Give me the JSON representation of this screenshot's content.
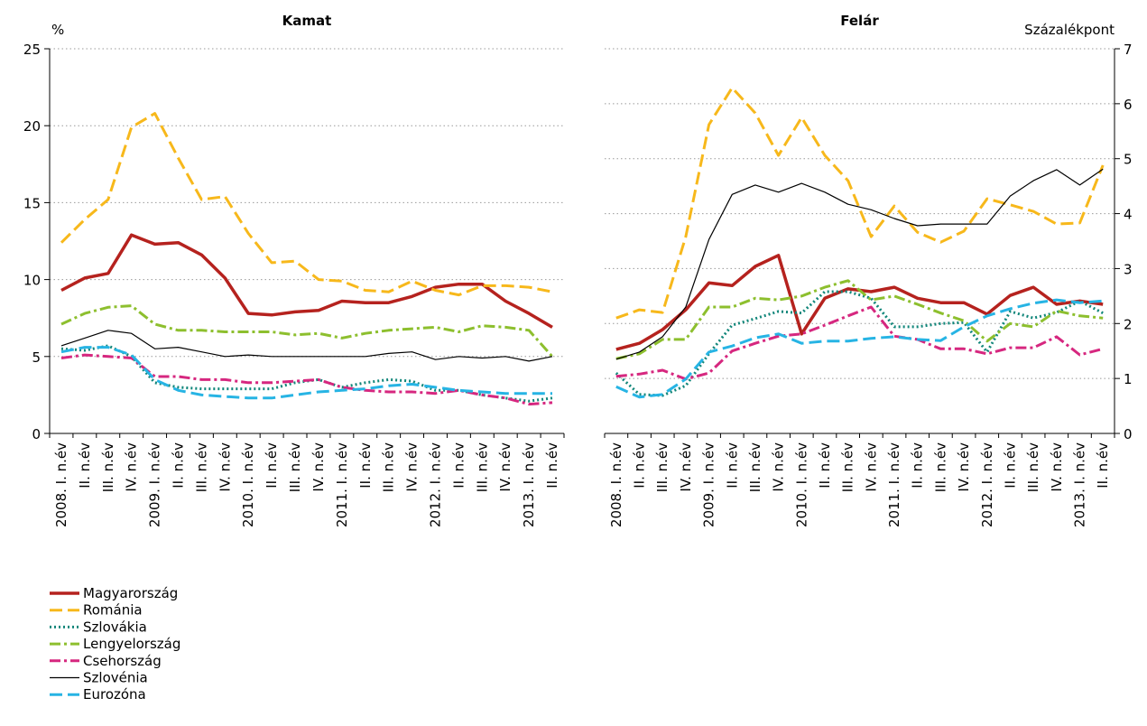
{
  "chart_data": [
    {
      "type": "line",
      "title": "Kamat",
      "y_label": "%",
      "y_axis_side": "left",
      "grid": true,
      "legend": "bottom-left",
      "categories": [
        "2008. I. n.év",
        "II. n.év",
        "III. n.év",
        "IV. n.év",
        "2009. I. n.év",
        "II. n.év",
        "III. n.év",
        "IV. n.év",
        "2010. I. n.év",
        "II. n.év",
        "III. n.év",
        "IV. n.év",
        "2011. I. n.év",
        "II. n.év",
        "III. n.év",
        "IV. n.év",
        "2012. I. n.év",
        "II. n.év",
        "III. n.év",
        "IV. n.év",
        "2013. I. n.év",
        "II. n.év"
      ],
      "ylim": [
        0,
        25
      ],
      "yticks": [
        0,
        5,
        10,
        15,
        20,
        25
      ],
      "series": [
        {
          "name": "Magyarország",
          "color": "#b5221e",
          "dash": "solid",
          "values": [
            9.3,
            10.1,
            10.4,
            12.9,
            12.3,
            12.4,
            11.6,
            10.1,
            7.8,
            7.7,
            7.9,
            8.0,
            8.6,
            8.5,
            8.5,
            8.9,
            9.5,
            9.7,
            9.7,
            8.6,
            7.8,
            6.9
          ]
        },
        {
          "name": "Románia",
          "color": "#f7b81b",
          "dash": "dashed",
          "values": [
            12.4,
            13.9,
            15.2,
            19.9,
            20.8,
            17.9,
            15.2,
            15.4,
            13.0,
            11.1,
            11.2,
            10.0,
            9.9,
            9.3,
            9.2,
            9.9,
            9.3,
            9.0,
            9.6,
            9.6,
            9.5,
            9.2
          ]
        },
        {
          "name": "Szlovákia",
          "color": "#11867a",
          "dash": "dotted",
          "values": [
            5.5,
            5.4,
            5.7,
            5.0,
            3.3,
            3.0,
            2.9,
            2.9,
            2.9,
            2.9,
            3.3,
            3.5,
            3.0,
            3.3,
            3.5,
            3.4,
            2.8,
            2.8,
            2.5,
            2.3,
            2.1,
            2.3
          ]
        },
        {
          "name": "Lengyelország",
          "color": "#8dbf2e",
          "dash": "dashdot",
          "values": [
            7.1,
            7.8,
            8.2,
            8.3,
            7.1,
            6.7,
            6.7,
            6.6,
            6.6,
            6.6,
            6.4,
            6.5,
            6.2,
            6.5,
            6.7,
            6.8,
            6.9,
            6.6,
            7.0,
            6.9,
            6.7,
            5.0
          ]
        },
        {
          "name": "Csehország",
          "color": "#d6277f",
          "dash": "dashdot",
          "values": [
            4.9,
            5.1,
            5.0,
            4.9,
            3.7,
            3.7,
            3.5,
            3.5,
            3.3,
            3.3,
            3.4,
            3.5,
            3.0,
            2.8,
            2.7,
            2.7,
            2.6,
            2.8,
            2.5,
            2.3,
            1.9,
            2.0
          ]
        },
        {
          "name": "Szlovénia",
          "color": "#000000",
          "dash": "thin",
          "values": [
            5.7,
            6.2,
            6.7,
            6.5,
            5.5,
            5.6,
            5.3,
            5.0,
            5.1,
            5.0,
            5.0,
            5.0,
            5.0,
            5.0,
            5.2,
            5.3,
            4.8,
            5.0,
            4.9,
            5.0,
            4.7,
            5.0
          ]
        },
        {
          "name": "Eurozóna",
          "color": "#27b4e4",
          "dash": "dashed",
          "values": [
            5.3,
            5.6,
            5.6,
            5.1,
            3.5,
            2.8,
            2.5,
            2.4,
            2.3,
            2.3,
            2.5,
            2.7,
            2.8,
            2.9,
            3.1,
            3.2,
            3.0,
            2.8,
            2.7,
            2.6,
            2.6,
            2.6
          ]
        }
      ]
    },
    {
      "type": "line",
      "title": "Felár",
      "y_label": "Százalékpont",
      "y_axis_side": "right",
      "grid": true,
      "categories": [
        "2008. I. n.év",
        "II. n.év",
        "III. n.év",
        "IV. n.év",
        "2009. I. n.év",
        "II. n.év",
        "III. n.év",
        "IV. n.év",
        "2010. I. n.év",
        "II. n.év",
        "III. n.év",
        "IV. n.év",
        "2011. I. n.év",
        "II. n.év",
        "III. n.év",
        "IV. n.év",
        "2012. I. n.év",
        "II. n.év",
        "III. n.év",
        "IV. n.év",
        "2013. I. n.év",
        "II. n.év"
      ],
      "ylim": [
        0,
        7
      ],
      "yticks": [
        0,
        1,
        2,
        3,
        4,
        5,
        6,
        7
      ],
      "series": [
        {
          "color": "#b5221e",
          "dash": "solid",
          "values": [
            1.53,
            1.64,
            1.89,
            2.25,
            2.74,
            2.69,
            3.04,
            3.24,
            1.81,
            2.46,
            2.63,
            2.58,
            2.66,
            2.46,
            2.38,
            2.38,
            2.17,
            2.51,
            2.66,
            2.35,
            2.41,
            2.35
          ]
        },
        {
          "color": "#f7b81b",
          "dash": "dashed",
          "values": [
            2.1,
            2.25,
            2.2,
            3.58,
            5.62,
            6.29,
            5.83,
            5.06,
            5.75,
            5.06,
            4.6,
            3.58,
            4.14,
            3.66,
            3.48,
            3.68,
            4.27,
            4.16,
            4.04,
            3.81,
            3.83,
            4.88
          ]
        },
        {
          "color": "#11867a",
          "dash": "dotted",
          "values": [
            1.1,
            0.71,
            0.69,
            0.87,
            1.45,
            1.97,
            2.09,
            2.22,
            2.19,
            2.58,
            2.58,
            2.46,
            1.94,
            1.94,
            2.0,
            2.02,
            1.48,
            2.22,
            2.1,
            2.2,
            2.41,
            2.19
          ]
        },
        {
          "color": "#8dbf2e",
          "dash": "dashdot",
          "values": [
            1.36,
            1.45,
            1.71,
            1.71,
            2.3,
            2.3,
            2.46,
            2.43,
            2.5,
            2.66,
            2.78,
            2.43,
            2.5,
            2.35,
            2.19,
            2.05,
            1.68,
            2.0,
            1.94,
            2.23,
            2.14,
            2.1
          ]
        },
        {
          "color": "#d6277f",
          "dash": "dashdot",
          "values": [
            1.04,
            1.08,
            1.15,
            0.99,
            1.1,
            1.5,
            1.64,
            1.77,
            1.81,
            1.97,
            2.14,
            2.3,
            1.77,
            1.71,
            1.54,
            1.54,
            1.45,
            1.56,
            1.56,
            1.76,
            1.43,
            1.54
          ]
        },
        {
          "color": "#000000",
          "dash": "thin",
          "values": [
            1.35,
            1.48,
            1.76,
            2.3,
            3.53,
            4.35,
            4.52,
            4.39,
            4.55,
            4.39,
            4.17,
            4.07,
            3.91,
            3.78,
            3.81,
            3.81,
            3.81,
            4.32,
            4.6,
            4.8,
            4.52,
            4.81
          ]
        },
        {
          "color": "#27b4e4",
          "dash": "dashed",
          "values": [
            0.85,
            0.66,
            0.71,
            0.99,
            1.48,
            1.59,
            1.74,
            1.81,
            1.64,
            1.68,
            1.68,
            1.73,
            1.76,
            1.71,
            1.69,
            1.94,
            2.14,
            2.27,
            2.37,
            2.43,
            2.38,
            2.41
          ]
        }
      ]
    }
  ]
}
